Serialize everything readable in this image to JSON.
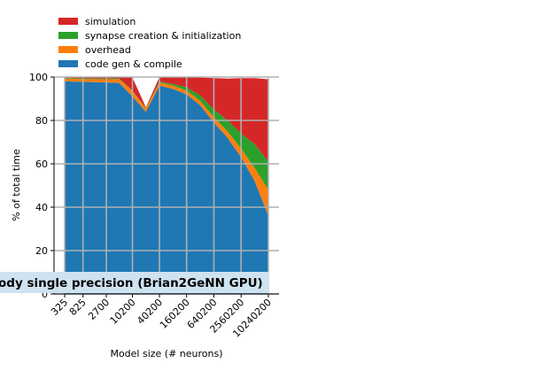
{
  "chart_data": {
    "type": "stacked_area",
    "title": "ody single precision (Brian2GeNN GPU)",
    "xlabel": "Model size (# neurons)",
    "ylabel": "% of total time",
    "x": [
      325,
      825,
      2700,
      5200,
      10200,
      20200,
      40200,
      80200,
      160200,
      320200,
      640200,
      1280200,
      2560200,
      5120200,
      10240200
    ],
    "log_x": true,
    "xlim": [
      189,
      17580000
    ],
    "xticks": [
      325,
      825,
      2700,
      10200,
      40200,
      160200,
      640200,
      2560200,
      10240200
    ],
    "ylim": [
      0,
      100
    ],
    "yticks": [
      0,
      20,
      40,
      60,
      80,
      100
    ],
    "grid": true,
    "legend": "upper left",
    "series": [
      {
        "name": "code gen & compile",
        "color": "#1f77b4",
        "values": [
          98,
          97.8,
          97.5,
          97.3,
          91,
          84,
          96,
          94.5,
          92,
          87,
          79,
          72,
          63,
          52,
          36
        ]
      },
      {
        "name": "overhead",
        "color": "#ff7f0e",
        "values": [
          1.3,
          1.3,
          1.5,
          1.8,
          2.5,
          1.5,
          1.5,
          1.5,
          1.8,
          2,
          2.5,
          3,
          4,
          6,
          12
        ]
      },
      {
        "name": "synapse creation & initialization",
        "color": "#2ca02c",
        "values": [
          0.3,
          0.3,
          0.3,
          0.3,
          0.3,
          0.2,
          0.5,
          0.8,
          1.5,
          2.5,
          3.5,
          5,
          7,
          11,
          13
        ]
      },
      {
        "name": "simulation",
        "color": "#d62728",
        "values": [
          0.4,
          0.6,
          0.7,
          0.6,
          6,
          0.3,
          2,
          3,
          4.5,
          8.3,
          14.5,
          19.3,
          25.5,
          30.5,
          38
        ]
      }
    ]
  }
}
